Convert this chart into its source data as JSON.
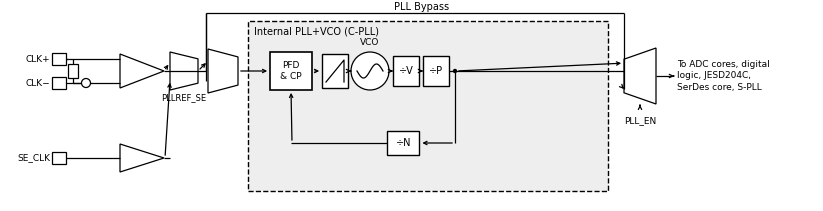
{
  "bg_color": "#ffffff",
  "gray_fill": "#eeeeee",
  "title_bypass": "PLL Bypass",
  "title_internal": "Internal PLL+VCO (C-PLL)",
  "label_vco": "VCO",
  "label_pfd": "PFD\n& CP",
  "label_divv": "÷V",
  "label_divp": "÷P",
  "label_divn": "÷N",
  "label_clkp": "CLK+",
  "label_clkm": "CLK−",
  "label_seclk": "SE_CLK",
  "label_pllref": "PLLREF_SE",
  "label_pllen": "PLL_EN",
  "label_right": "To ADC cores, digital\nlogic, JESD204C,\nSerDes core, S-PLL",
  "line_color": "#000000",
  "text_color": "#000000"
}
